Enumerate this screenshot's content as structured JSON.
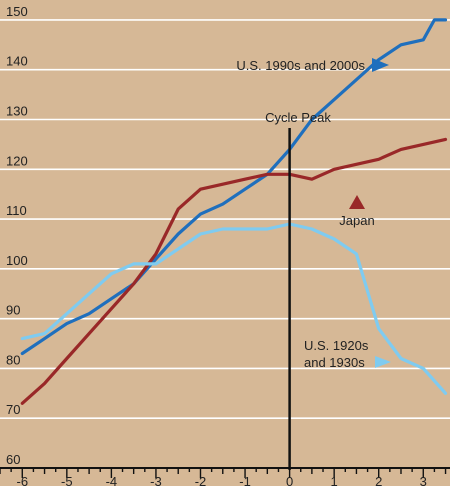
{
  "chart_data": {
    "type": "line",
    "xlim": [
      -6.5,
      3.6
    ],
    "ylim": [
      60,
      154
    ],
    "x_ticks": [
      -6,
      -5,
      -4,
      -3,
      -2,
      -1,
      0,
      1,
      2,
      3
    ],
    "x_tick_labels": [
      "-6",
      "-5",
      "-4",
      "-3",
      "-2",
      "-1",
      "0",
      "1",
      "2",
      "3"
    ],
    "y_ticks": [
      60,
      70,
      80,
      90,
      100,
      110,
      120,
      130,
      140,
      150
    ],
    "y_tick_labels": [
      "60",
      "70",
      "80",
      "90",
      "100",
      "110",
      "120",
      "130",
      "140",
      "150"
    ],
    "grid": "horizontal",
    "series": [
      {
        "name": "U.S. 1990s and 2000s",
        "color": "#1f6fbd",
        "x": [
          -6.0,
          -5.5,
          -5.0,
          -4.5,
          -4.0,
          -3.5,
          -3.0,
          -2.5,
          -2.0,
          -1.5,
          -1.0,
          -0.5,
          0.0,
          0.5,
          1.0,
          1.5,
          2.0,
          2.5,
          3.0,
          3.25,
          3.5
        ],
        "y": [
          83,
          86,
          89,
          91,
          94,
          97,
          102,
          107,
          111,
          113,
          116,
          119,
          124,
          130,
          134,
          138,
          142,
          145,
          146,
          150,
          150
        ]
      },
      {
        "name": "Japan",
        "color": "#992828",
        "x": [
          -6.0,
          -5.5,
          -5.0,
          -4.5,
          -4.0,
          -3.5,
          -3.0,
          -2.5,
          -2.0,
          -1.5,
          -1.0,
          -0.5,
          0.0,
          0.5,
          1.0,
          1.5,
          2.0,
          2.5,
          3.0,
          3.5
        ],
        "y": [
          73,
          77,
          82,
          87,
          92,
          97,
          103,
          112,
          116,
          117,
          118,
          119,
          119,
          118,
          120,
          121,
          122,
          124,
          125,
          126
        ]
      },
      {
        "name": "U.S. 1920s and 1930s",
        "color": "#7fcbf0",
        "x": [
          -6.0,
          -5.5,
          -5.0,
          -4.5,
          -4.0,
          -3.5,
          -3.0,
          -2.5,
          -2.0,
          -1.5,
          -1.0,
          -0.5,
          0.0,
          0.5,
          1.0,
          1.5,
          2.0,
          2.5,
          3.0,
          3.5
        ],
        "y": [
          86,
          87,
          91,
          95,
          99,
          101,
          101,
          104,
          107,
          108,
          108,
          108,
          109,
          108,
          106,
          103,
          88,
          82,
          80,
          75
        ]
      }
    ],
    "annotations": [
      {
        "text": "Cycle Peak",
        "x": 0
      },
      {
        "text": "U.S. 1990s and 2000s",
        "series": 0
      },
      {
        "text": "Japan",
        "series": 1
      },
      {
        "text": "U.S. 1920s",
        "series": 2
      },
      {
        "text": "and 1930s",
        "series": 2
      }
    ]
  }
}
